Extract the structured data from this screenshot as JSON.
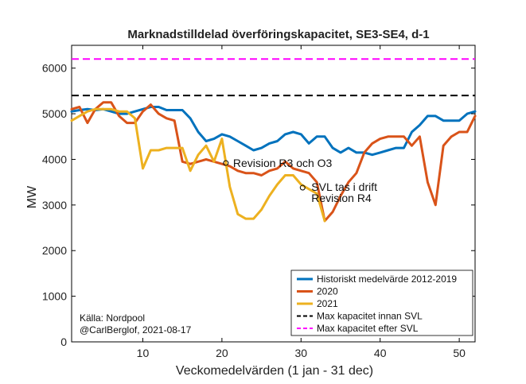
{
  "chart_data": {
    "type": "line",
    "title": "Marknadstilldelad överföringskapacitet, SE3-SE4, d-1",
    "xlabel": "Veckomedelvärden (1 jan - 31 dec)",
    "ylabel": "MW",
    "xlim": [
      1,
      52
    ],
    "ylim": [
      0,
      6500
    ],
    "x_ticks": [
      10,
      20,
      30,
      40,
      50
    ],
    "y_ticks": [
      0,
      1000,
      2000,
      3000,
      4000,
      5000,
      6000
    ],
    "grid": false,
    "legend_position": "bottom-right",
    "series": [
      {
        "name": "Historiskt medelvärde 2012-2019",
        "color": "#0072bd",
        "x": [
          1,
          2,
          3,
          4,
          5,
          6,
          7,
          8,
          9,
          10,
          11,
          12,
          13,
          14,
          15,
          16,
          17,
          18,
          19,
          20,
          21,
          22,
          23,
          24,
          25,
          26,
          27,
          28,
          29,
          30,
          31,
          32,
          33,
          34,
          35,
          36,
          37,
          38,
          39,
          40,
          41,
          42,
          43,
          44,
          45,
          46,
          47,
          48,
          49,
          50,
          51,
          52
        ],
        "y": [
          5050,
          5080,
          5100,
          5080,
          5100,
          5050,
          5000,
          5000,
          5050,
          5100,
          5150,
          5150,
          5080,
          5080,
          5080,
          4900,
          4600,
          4400,
          4450,
          4550,
          4500,
          4400,
          4300,
          4200,
          4250,
          4350,
          4400,
          4550,
          4600,
          4550,
          4350,
          4500,
          4500,
          4250,
          4150,
          4250,
          4150,
          4150,
          4100,
          4150,
          4200,
          4250,
          4250,
          4600,
          4750,
          4950,
          4950,
          4850,
          4850,
          4850,
          5000,
          5050
        ]
      },
      {
        "name": "2020",
        "color": "#d95319",
        "x": [
          1,
          2,
          3,
          4,
          5,
          6,
          7,
          8,
          9,
          10,
          11,
          12,
          13,
          14,
          15,
          16,
          17,
          18,
          19,
          20,
          21,
          22,
          23,
          24,
          25,
          26,
          27,
          28,
          29,
          30,
          31,
          32,
          33,
          34,
          35,
          36,
          37,
          38,
          39,
          40,
          41,
          42,
          43,
          44,
          45,
          46,
          47,
          48,
          49,
          50,
          51,
          52
        ],
        "y": [
          5100,
          5150,
          4800,
          5100,
          5250,
          5250,
          4950,
          4800,
          4800,
          5050,
          5200,
          5000,
          4900,
          4850,
          3950,
          3900,
          3950,
          4000,
          3950,
          3900,
          3850,
          3750,
          3700,
          3700,
          3650,
          3750,
          3800,
          3950,
          3800,
          3750,
          3700,
          3500,
          2650,
          2850,
          3200,
          3500,
          3700,
          4150,
          4350,
          4450,
          4500,
          4500,
          4500,
          4300,
          4500,
          3500,
          3000,
          4300,
          4500,
          4600,
          4600,
          4950
        ]
      },
      {
        "name": "2021",
        "color": "#edb120",
        "x": [
          1,
          2,
          3,
          4,
          5,
          6,
          7,
          8,
          9,
          10,
          11,
          12,
          13,
          14,
          15,
          16,
          17,
          18,
          19,
          20,
          21,
          22,
          23,
          24,
          25,
          26,
          27,
          28,
          29,
          30,
          31,
          32,
          33
        ],
        "y": [
          4850,
          4950,
          5050,
          5100,
          5100,
          5100,
          5050,
          5050,
          4900,
          3800,
          4200,
          4200,
          4250,
          4250,
          4250,
          3750,
          4100,
          4300,
          3950,
          4450,
          3400,
          2800,
          2700,
          2700,
          2900,
          3200,
          3450,
          3650,
          3650,
          3450,
          3350,
          3250,
          2650
        ]
      },
      {
        "name": "Max kapacitet innan SVL",
        "color": "#000000",
        "dashed": true,
        "x": [
          1,
          52
        ],
        "y": [
          5400,
          5400
        ]
      },
      {
        "name": "Max kapacitet efter SVL",
        "color": "#ff00ff",
        "dashed": true,
        "x": [
          1,
          52
        ],
        "y": [
          6200,
          6200
        ]
      }
    ],
    "annotations": [
      {
        "text": "Revision R3 och O3",
        "x": 20.5,
        "y": 3920
      },
      {
        "text": "SVL tas i drift",
        "x": 30.2,
        "y": 3380
      },
      {
        "text": "Revision R4",
        "x": 30.2,
        "y": 3380
      }
    ],
    "source_lines": [
      "Källa: Nordpool",
      "@CarlBerglof, 2021-08-17"
    ]
  }
}
